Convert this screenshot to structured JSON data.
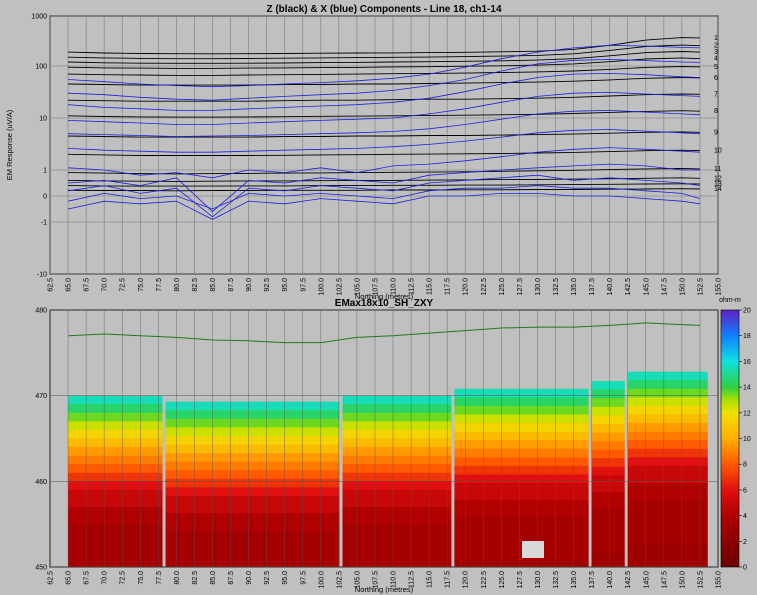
{
  "chart_data": [
    {
      "type": "line",
      "title": "Z (black) & X (blue) Components - Line 18, ch1-14",
      "xlabel": "Northing (metres)",
      "ylabel": "EM Response (uV/A)",
      "yscale": "symlog",
      "ylim": [
        -10,
        1000
      ],
      "xlim": [
        62.5,
        155.0
      ],
      "y_tick_labels": [
        "1000",
        "100",
        "10",
        "1",
        "0",
        "-1",
        "-10"
      ],
      "x_ticks": [
        62.5,
        65.0,
        67.5,
        70.0,
        72.5,
        75.0,
        77.5,
        80.0,
        82.5,
        85.0,
        87.5,
        90.0,
        92.5,
        95.0,
        97.5,
        100.0,
        102.5,
        105.0,
        107.5,
        110.0,
        112.5,
        115.0,
        117.5,
        120.0,
        122.5,
        125.0,
        127.5,
        130.0,
        132.5,
        135.0,
        137.5,
        140.0,
        142.5,
        145.0,
        147.5,
        150.0,
        152.5,
        155.0
      ],
      "x": [
        65.0,
        70.0,
        75.0,
        80.0,
        85.0,
        90.0,
        95.0,
        100.0,
        105.0,
        110.0,
        115.0,
        120.0,
        125.0,
        130.0,
        135.0,
        140.0,
        145.0,
        150.0,
        152.5
      ],
      "series": [
        {
          "name": "1",
          "values": [
            190,
            182,
            178,
            176,
            175,
            176,
            178,
            180,
            182,
            183,
            185,
            188,
            192,
            198,
            215,
            260,
            330,
            370,
            365
          ]
        },
        {
          "name": "2",
          "values": [
            150,
            145,
            142,
            140,
            140,
            141,
            143,
            145,
            147,
            149,
            151,
            154,
            158,
            163,
            175,
            205,
            245,
            262,
            255
          ]
        },
        {
          "name": "3",
          "values": [
            120,
            116,
            114,
            113,
            113,
            114,
            115,
            117,
            118,
            120,
            122,
            124,
            127,
            131,
            140,
            160,
            185,
            195,
            190
          ]
        },
        {
          "name": "4",
          "values": [
            95,
            92,
            91,
            90,
            90,
            91,
            92,
            93,
            94,
            96,
            97,
            99,
            101,
            104,
            110,
            122,
            138,
            145,
            140
          ]
        },
        {
          "name": "5",
          "values": [
            70,
            68,
            67,
            66,
            66,
            67,
            68,
            69,
            70,
            71,
            72,
            73,
            75,
            77,
            80,
            86,
            94,
            98,
            96
          ]
        },
        {
          "name": "6",
          "values": [
            45,
            44,
            43,
            43,
            43,
            43,
            44,
            44,
            45,
            45,
            46,
            47,
            48,
            49,
            51,
            54,
            58,
            60,
            59
          ]
        },
        {
          "name": "7",
          "values": [
            22,
            21.5,
            21,
            21,
            21,
            21,
            21.5,
            22,
            22,
            22.5,
            23,
            23,
            23.5,
            24,
            25,
            26.5,
            28,
            29,
            28.5
          ]
        },
        {
          "name": "8",
          "values": [
            11,
            10.7,
            10.5,
            10.4,
            10.4,
            10.5,
            10.6,
            10.8,
            10.9,
            11,
            11.2,
            11.3,
            11.5,
            11.8,
            12.2,
            12.8,
            13.4,
            13.8,
            13.5
          ]
        },
        {
          "name": "9",
          "values": [
            4.5,
            4.4,
            4.3,
            4.3,
            4.3,
            4.3,
            4.4,
            4.4,
            4.5,
            4.5,
            4.6,
            4.6,
            4.7,
            4.8,
            4.9,
            5.1,
            5.3,
            5.4,
            5.3
          ]
        },
        {
          "name": "10",
          "values": [
            2.0,
            1.95,
            1.9,
            1.9,
            1.9,
            1.9,
            1.92,
            1.95,
            1.97,
            2.0,
            2.02,
            2.05,
            2.08,
            2.12,
            2.18,
            2.26,
            2.35,
            2.4,
            2.36
          ]
        },
        {
          "name": "11",
          "values": [
            0.9,
            0.88,
            0.86,
            0.85,
            0.86,
            0.87,
            0.88,
            0.89,
            0.9,
            0.91,
            0.92,
            0.93,
            0.95,
            0.97,
            0.99,
            1.02,
            1.05,
            1.07,
            1.05
          ]
        },
        {
          "name": "12",
          "values": [
            0.6,
            0.58,
            0.57,
            0.56,
            0.57,
            0.58,
            0.58,
            0.59,
            0.6,
            0.6,
            0.61,
            0.62,
            0.63,
            0.64,
            0.65,
            0.66,
            0.68,
            0.7,
            0.68
          ]
        },
        {
          "name": "13",
          "values": [
            0.4,
            0.39,
            0.38,
            0.38,
            0.38,
            0.39,
            0.39,
            0.4,
            0.4,
            0.41,
            0.41,
            0.42,
            0.42,
            0.43,
            0.44,
            0.45,
            0.46,
            0.47,
            0.46
          ]
        },
        {
          "name": "14",
          "values": [
            0.22,
            0.21,
            0.21,
            0.2,
            0.21,
            0.21,
            0.22,
            0.22,
            0.22,
            0.23,
            0.23,
            0.24,
            0.24,
            0.25,
            0.25,
            0.26,
            0.27,
            0.28,
            0.27
          ]
        },
        {
          "values": [
            55,
            50,
            45,
            42,
            40,
            42,
            45,
            48,
            52,
            58,
            70,
            95,
            140,
            190,
            230,
            260,
            250,
            235,
            230
          ]
        },
        {
          "values": [
            30,
            28,
            25,
            23,
            22,
            24,
            26,
            28,
            30,
            34,
            42,
            55,
            80,
            110,
            130,
            135,
            128,
            120,
            118
          ]
        },
        {
          "values": [
            18,
            16,
            15,
            14,
            14,
            15,
            16,
            17,
            18,
            20,
            24,
            32,
            45,
            60,
            70,
            72,
            68,
            62,
            60
          ]
        },
        {
          "values": [
            9,
            8.5,
            8,
            7.5,
            7.5,
            8,
            8.5,
            9,
            9.5,
            10,
            12,
            15,
            20,
            26,
            30,
            31,
            29,
            27,
            26
          ]
        },
        {
          "values": [
            5,
            4.8,
            4.6,
            4.4,
            4.5,
            4.6,
            4.8,
            5,
            5.2,
            5.5,
            6.2,
            7.5,
            9.5,
            12,
            13.5,
            14,
            13,
            12,
            11.5
          ]
        },
        {
          "values": [
            2.6,
            2.4,
            2.3,
            2.2,
            2.2,
            2.3,
            2.4,
            2.5,
            2.6,
            2.8,
            3.1,
            3.6,
            4.3,
            5.2,
            5.8,
            6,
            5.6,
            5.2,
            5
          ]
        },
        {
          "values": [
            1.1,
            1.0,
            0.8,
            0.9,
            0.7,
            1.0,
            0.9,
            1.1,
            0.9,
            1.2,
            1.3,
            1.5,
            1.8,
            2.2,
            2.5,
            2.7,
            2.5,
            2.3,
            2.2
          ]
        },
        {
          "values": [
            0.5,
            0.6,
            0.4,
            0.7,
            -0.6,
            0.6,
            0.5,
            0.7,
            0.6,
            0.5,
            0.8,
            0.9,
            1.0,
            1.1,
            1.2,
            1.3,
            1.2,
            1.0,
            1.0
          ]
        },
        {
          "values": [
            0.2,
            0.4,
            0.1,
            0.3,
            -0.8,
            0.3,
            0.2,
            0.4,
            0.3,
            0.2,
            0.5,
            0.6,
            0.7,
            0.8,
            0.6,
            0.7,
            0.6,
            0.5,
            0.4
          ]
        },
        {
          "values": [
            -0.2,
            0.1,
            -0.1,
            0.0,
            -0.5,
            0.1,
            0.0,
            0.1,
            0.0,
            -0.1,
            0.2,
            0.3,
            0.3,
            0.4,
            0.3,
            0.3,
            0.2,
            0.1,
            -0.1
          ]
        },
        {
          "values": [
            -0.5,
            -0.2,
            -0.3,
            -0.2,
            -0.9,
            -0.2,
            -0.3,
            -0.1,
            -0.2,
            -0.3,
            0.0,
            0.0,
            0.1,
            0.1,
            0.0,
            0.0,
            -0.1,
            -0.2,
            -0.3
          ]
        }
      ]
    },
    {
      "type": "heatmap",
      "title": "EMax18x10_SH_ZXY",
      "xlabel": "Northing (metres)",
      "ylabel": "",
      "colorbar_label": "ohm-m",
      "ylim": [
        450,
        480
      ],
      "xlim": [
        62.5,
        155.0
      ],
      "y_tick_labels": [
        "480",
        "470",
        "460",
        "450"
      ],
      "colorbar_ticks": [
        0,
        2,
        4,
        6,
        8,
        10,
        12,
        14,
        16,
        18,
        20
      ],
      "colorbar_range": [
        0,
        20
      ],
      "x_ticks": [
        62.5,
        65.0,
        67.5,
        70.0,
        72.5,
        75.0,
        77.5,
        80.0,
        82.5,
        85.0,
        87.5,
        90.0,
        92.5,
        95.0,
        97.5,
        100.0,
        102.5,
        105.0,
        107.5,
        110.0,
        112.5,
        115.0,
        117.5,
        120.0,
        122.5,
        125.0,
        127.5,
        130.0,
        132.5,
        135.0,
        137.5,
        140.0,
        142.5,
        145.0,
        147.5,
        150.0,
        152.5,
        155.0
      ],
      "topography": {
        "x": [
          65.0,
          70.0,
          75.0,
          80.0,
          85.0,
          90.0,
          95.0,
          100.0,
          102.5,
          105.0,
          110.0,
          115.0,
          120.0,
          125.0,
          130.0,
          135.0,
          140.0,
          145.0,
          150.0,
          152.5
        ],
        "elevation": [
          477.0,
          477.2,
          477.0,
          476.8,
          476.5,
          476.4,
          476.2,
          476.2,
          476.5,
          476.8,
          477.0,
          477.3,
          477.6,
          477.9,
          478.0,
          478.0,
          478.2,
          478.5,
          478.3,
          478.2
        ]
      },
      "model_top": {
        "x": [
          65.0,
          78.0,
          78.5,
          102.5,
          103.0,
          118.0,
          118.5,
          137.0,
          137.5,
          142.0,
          142.5,
          153.5
        ],
        "elevation": [
          470.0,
          470.0,
          469.3,
          469.3,
          470.0,
          470.0,
          470.8,
          470.8,
          471.7,
          471.7,
          472.8,
          472.8
        ]
      },
      "resistivity_profile": {
        "depth_below_surface_m": [
          0,
          1,
          2,
          3,
          4,
          5,
          6,
          7,
          8,
          9,
          10,
          11,
          13,
          15,
          20
        ],
        "resistivity_ohm_m": [
          15.5,
          14.5,
          13.5,
          12.5,
          11.5,
          10.5,
          9.5,
          8.8,
          8.0,
          7.0,
          6.0,
          5.0,
          4.0,
          3.5,
          3.0
        ]
      }
    }
  ]
}
